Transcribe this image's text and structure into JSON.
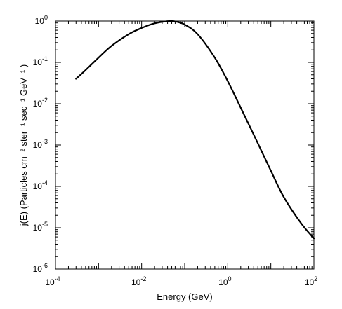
{
  "chart_data": {
    "type": "line",
    "xlabel": "Energy (GeV)",
    "ylabel": "j(E) (Particles cm⁻² ster⁻¹ sec⁻¹ GeV⁻¹ )",
    "x_scale": "log",
    "y_scale": "log",
    "xlim": [
      0.0001,
      100
    ],
    "ylim": [
      1e-06,
      1
    ],
    "grid": false,
    "x_ticks": [
      {
        "base": "10",
        "exp": "-4"
      },
      {
        "base": "10",
        "exp": "-2"
      },
      {
        "base": "10",
        "exp": "0"
      },
      {
        "base": "10",
        "exp": "2"
      }
    ],
    "y_ticks": [
      {
        "base": "10",
        "exp": "-6"
      },
      {
        "base": "10",
        "exp": "-5"
      },
      {
        "base": "10",
        "exp": "-4"
      },
      {
        "base": "10",
        "exp": "-3"
      },
      {
        "base": "10",
        "exp": "-2"
      },
      {
        "base": "10",
        "exp": "-1"
      },
      {
        "base": "10",
        "exp": "0"
      }
    ],
    "series": [
      {
        "color": "#000000",
        "x": [
          0.0003,
          0.0005,
          0.001,
          0.002,
          0.005,
          0.01,
          0.02,
          0.04,
          0.06,
          0.1,
          0.2,
          0.5,
          1,
          2,
          5,
          10,
          20,
          50,
          100
        ],
        "y": [
          0.04,
          0.065,
          0.13,
          0.25,
          0.48,
          0.68,
          0.88,
          0.99,
          0.98,
          0.82,
          0.48,
          0.13,
          0.035,
          0.008,
          0.0011,
          0.00024,
          5.5e-05,
          1.3e-05,
          5.5e-06
        ]
      }
    ]
  }
}
